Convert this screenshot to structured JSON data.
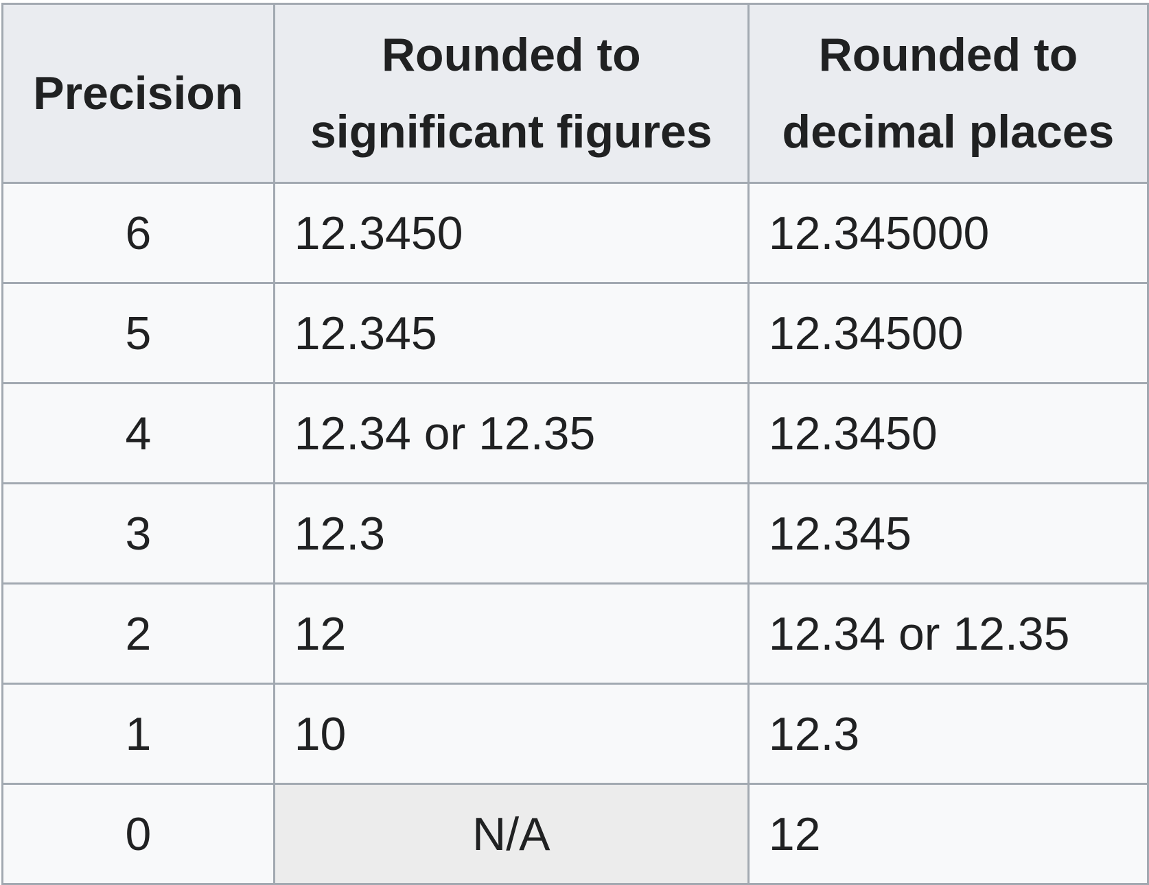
{
  "table": {
    "headers": {
      "precision": "Precision",
      "sig_figs_line1": "Rounded to",
      "sig_figs_line2": "significant figures",
      "decimal_line1": "Rounded to",
      "decimal_line2": "decimal places"
    },
    "rows": [
      {
        "precision": "6",
        "sig_figs": "12.3450",
        "decimal_places": "12.345000"
      },
      {
        "precision": "5",
        "sig_figs": "12.345",
        "decimal_places": "12.34500"
      },
      {
        "precision": "4",
        "sig_figs": "12.34 or 12.35",
        "decimal_places": "12.3450"
      },
      {
        "precision": "3",
        "sig_figs": "12.3",
        "decimal_places": "12.345"
      },
      {
        "precision": "2",
        "sig_figs": "12",
        "decimal_places": "12.34 or 12.35"
      },
      {
        "precision": "1",
        "sig_figs": "10",
        "decimal_places": "12.3"
      },
      {
        "precision": "0",
        "sig_figs": "N/A",
        "decimal_places": "12"
      }
    ]
  },
  "colors": {
    "border": "#a2a9b1",
    "header_bg": "#eaecf0",
    "cell_bg": "#f8f9fa",
    "na_bg": "#ececec",
    "text": "#202122"
  }
}
